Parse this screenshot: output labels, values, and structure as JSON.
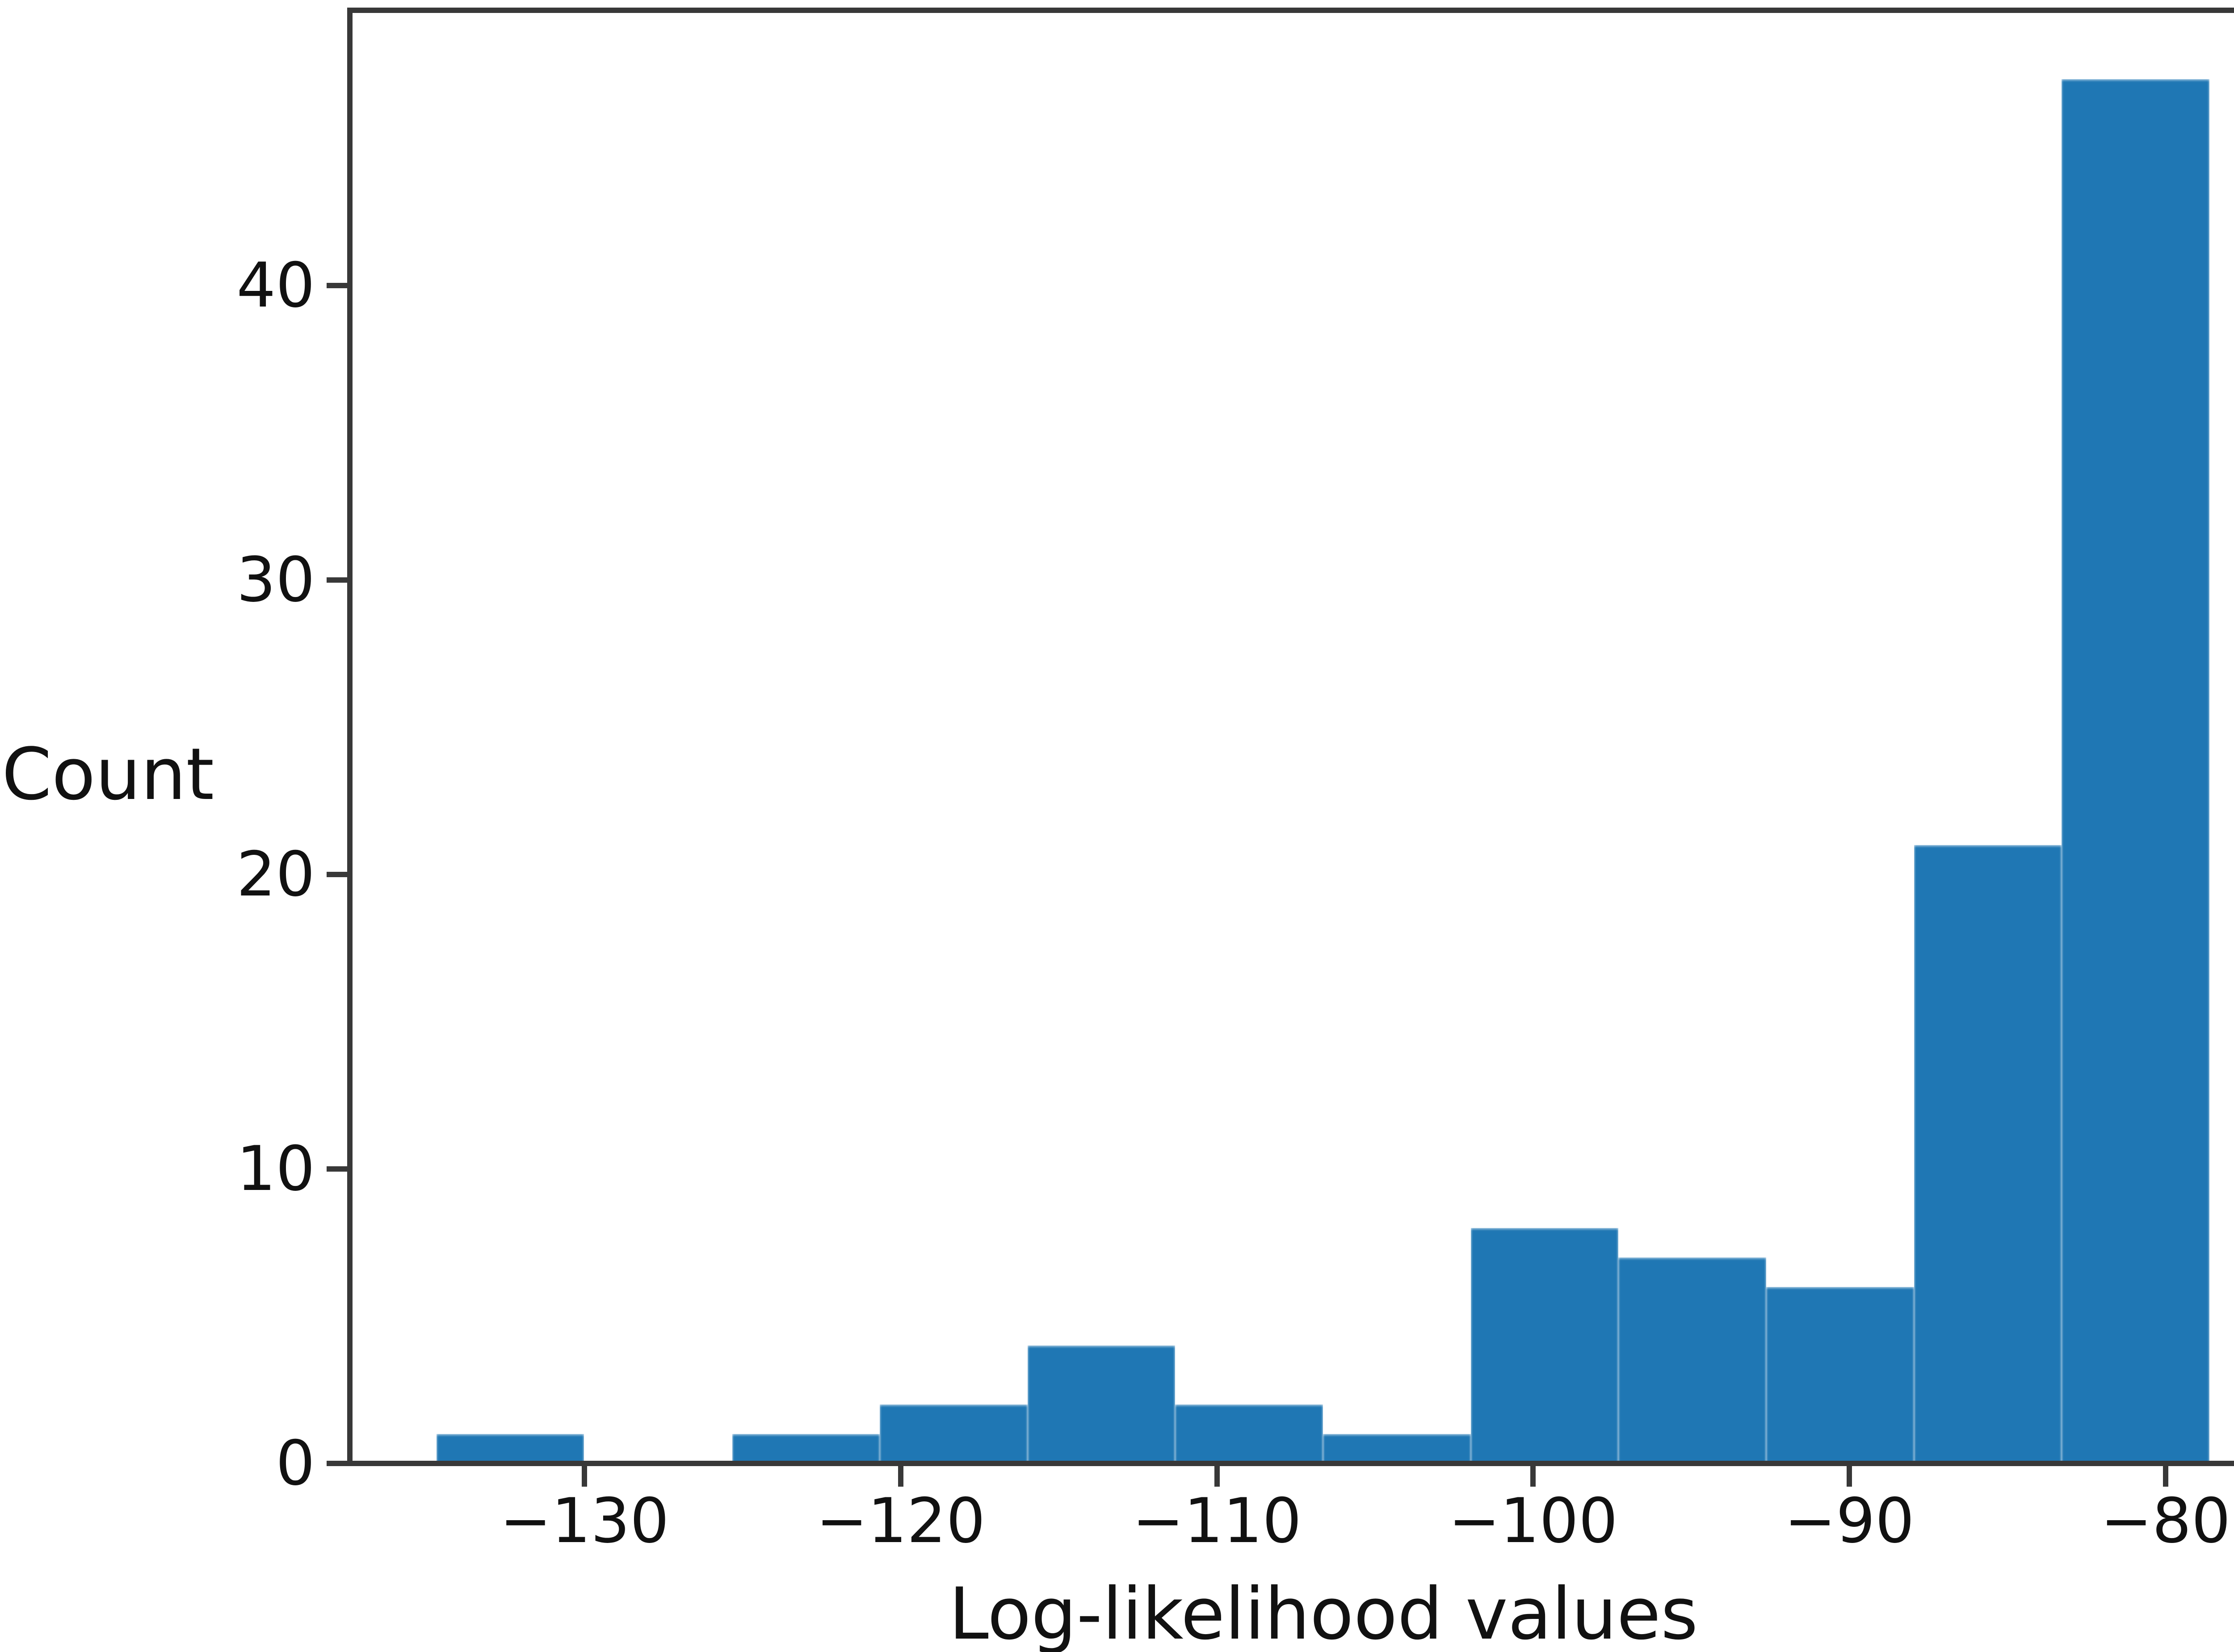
{
  "chart_data": {
    "type": "histogram",
    "title": "",
    "xlabel": "Log-likelihood values",
    "ylabel": "Count",
    "bar_color": "#1f77b4",
    "spine_color": "#383838",
    "background": "#ffffff",
    "bins": 12,
    "bin_edges": [
      -134.68,
      -130.01,
      -125.33,
      -120.66,
      -115.99,
      -111.32,
      -106.65,
      -101.97,
      -97.3,
      -92.63,
      -87.96,
      -83.29,
      -78.61
    ],
    "counts": [
      1,
      0,
      1,
      2,
      4,
      2,
      1,
      8,
      7,
      6,
      21,
      47
    ],
    "total_count": 100,
    "xlim": [
      -137.42,
      -75.83
    ],
    "ylim": [
      0,
      49.34
    ],
    "x_ticks": [
      {
        "value": -130,
        "label": "−130"
      },
      {
        "value": -120,
        "label": "−120"
      },
      {
        "value": -110,
        "label": "−110"
      },
      {
        "value": -100,
        "label": "−100"
      },
      {
        "value": -90,
        "label": "−90"
      },
      {
        "value": -80,
        "label": "−80"
      }
    ],
    "y_ticks": [
      {
        "value": 0,
        "label": "0"
      },
      {
        "value": 10,
        "label": "10"
      },
      {
        "value": 20,
        "label": "20"
      },
      {
        "value": 30,
        "label": "30"
      },
      {
        "value": 40,
        "label": "40"
      }
    ],
    "grid": false,
    "legend": null
  }
}
